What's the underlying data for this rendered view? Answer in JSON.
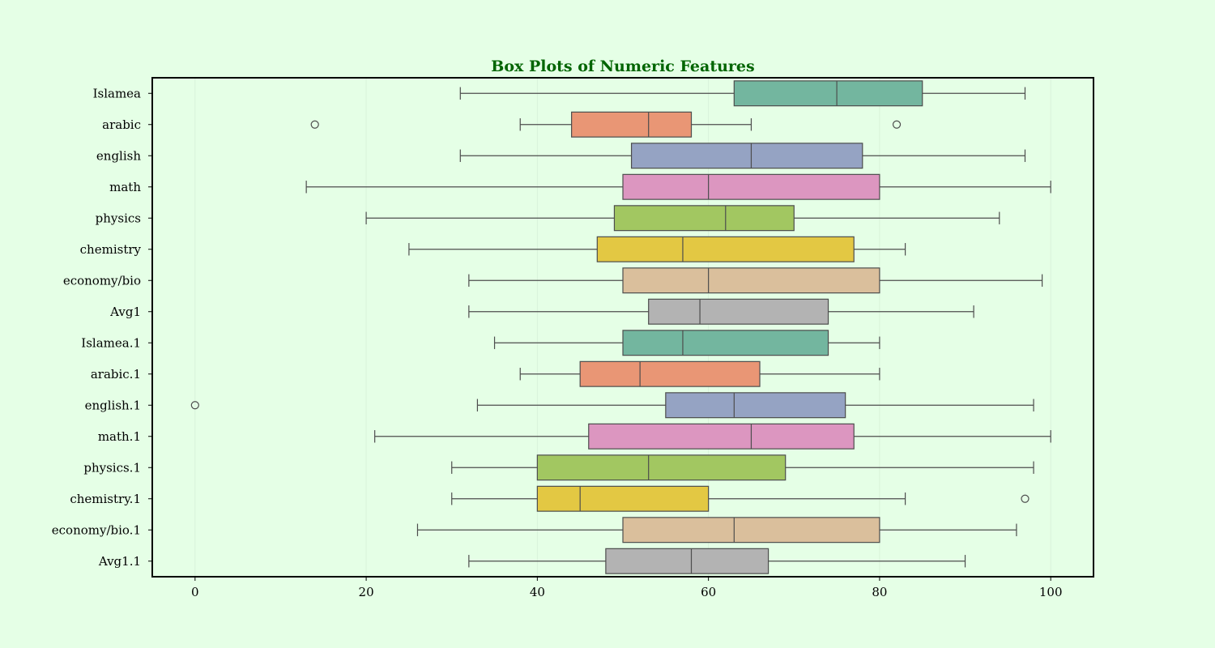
{
  "colors": {
    "background": "#e5ffe6",
    "title": "#006400",
    "frame": "#000000",
    "whisker": "#4d4d4d",
    "grid": "#d9f2da"
  },
  "chart_data": {
    "type": "box",
    "orientation": "horizontal",
    "title": "Box Plots of Numeric Features",
    "xlabel": "",
    "ylabel": "",
    "xlim": [
      -5,
      105
    ],
    "xticks": [
      0,
      20,
      40,
      60,
      80,
      100
    ],
    "grid": "vertical, faint",
    "legend": "none",
    "categories": [
      "Islamea",
      "arabic",
      "english",
      "math",
      "physics",
      "chemistry",
      "economy/bio",
      "Avg1",
      "Islamea.1",
      "arabic.1",
      "english.1",
      "math.1",
      "physics.1",
      "chemistry.1",
      "economy/bio.1",
      "Avg1.1"
    ],
    "palette": [
      "#73b69f",
      "#e99675",
      "#95a3c3",
      "#dc96c0",
      "#a2c761",
      "#e3c843",
      "#dabf9c",
      "#b3b3b3",
      "#73b69f",
      "#e99675",
      "#95a3c3",
      "#dc96c0",
      "#a2c761",
      "#e3c843",
      "#dabf9c",
      "#b3b3b3"
    ],
    "boxes": [
      {
        "whisker_low": 31,
        "q1": 63,
        "median": 75,
        "q3": 85,
        "whisker_high": 97,
        "outliers": []
      },
      {
        "whisker_low": 38,
        "q1": 44,
        "median": 53,
        "q3": 58,
        "whisker_high": 65,
        "outliers": [
          14,
          82
        ]
      },
      {
        "whisker_low": 31,
        "q1": 51,
        "median": 65,
        "q3": 78,
        "whisker_high": 97,
        "outliers": []
      },
      {
        "whisker_low": 13,
        "q1": 50,
        "median": 60,
        "q3": 80,
        "whisker_high": 100,
        "outliers": []
      },
      {
        "whisker_low": 20,
        "q1": 49,
        "median": 62,
        "q3": 70,
        "whisker_high": 94,
        "outliers": []
      },
      {
        "whisker_low": 25,
        "q1": 47,
        "median": 57,
        "q3": 77,
        "whisker_high": 83,
        "outliers": []
      },
      {
        "whisker_low": 32,
        "q1": 50,
        "median": 60,
        "q3": 80,
        "whisker_high": 99,
        "outliers": []
      },
      {
        "whisker_low": 32,
        "q1": 53,
        "median": 59,
        "q3": 74,
        "whisker_high": 91,
        "outliers": []
      },
      {
        "whisker_low": 35,
        "q1": 50,
        "median": 57,
        "q3": 74,
        "whisker_high": 80,
        "outliers": []
      },
      {
        "whisker_low": 38,
        "q1": 45,
        "median": 52,
        "q3": 66,
        "whisker_high": 80,
        "outliers": []
      },
      {
        "whisker_low": 33,
        "q1": 55,
        "median": 63,
        "q3": 76,
        "whisker_high": 98,
        "outliers": [
          0
        ]
      },
      {
        "whisker_low": 21,
        "q1": 46,
        "median": 65,
        "q3": 77,
        "whisker_high": 100,
        "outliers": []
      },
      {
        "whisker_low": 30,
        "q1": 40,
        "median": 53,
        "q3": 69,
        "whisker_high": 98,
        "outliers": []
      },
      {
        "whisker_low": 30,
        "q1": 40,
        "median": 45,
        "q3": 60,
        "whisker_high": 83,
        "outliers": [
          97
        ]
      },
      {
        "whisker_low": 26,
        "q1": 50,
        "median": 63,
        "q3": 80,
        "whisker_high": 96,
        "outliers": []
      },
      {
        "whisker_low": 32,
        "q1": 48,
        "median": 58,
        "q3": 67,
        "whisker_high": 90,
        "outliers": []
      }
    ]
  }
}
